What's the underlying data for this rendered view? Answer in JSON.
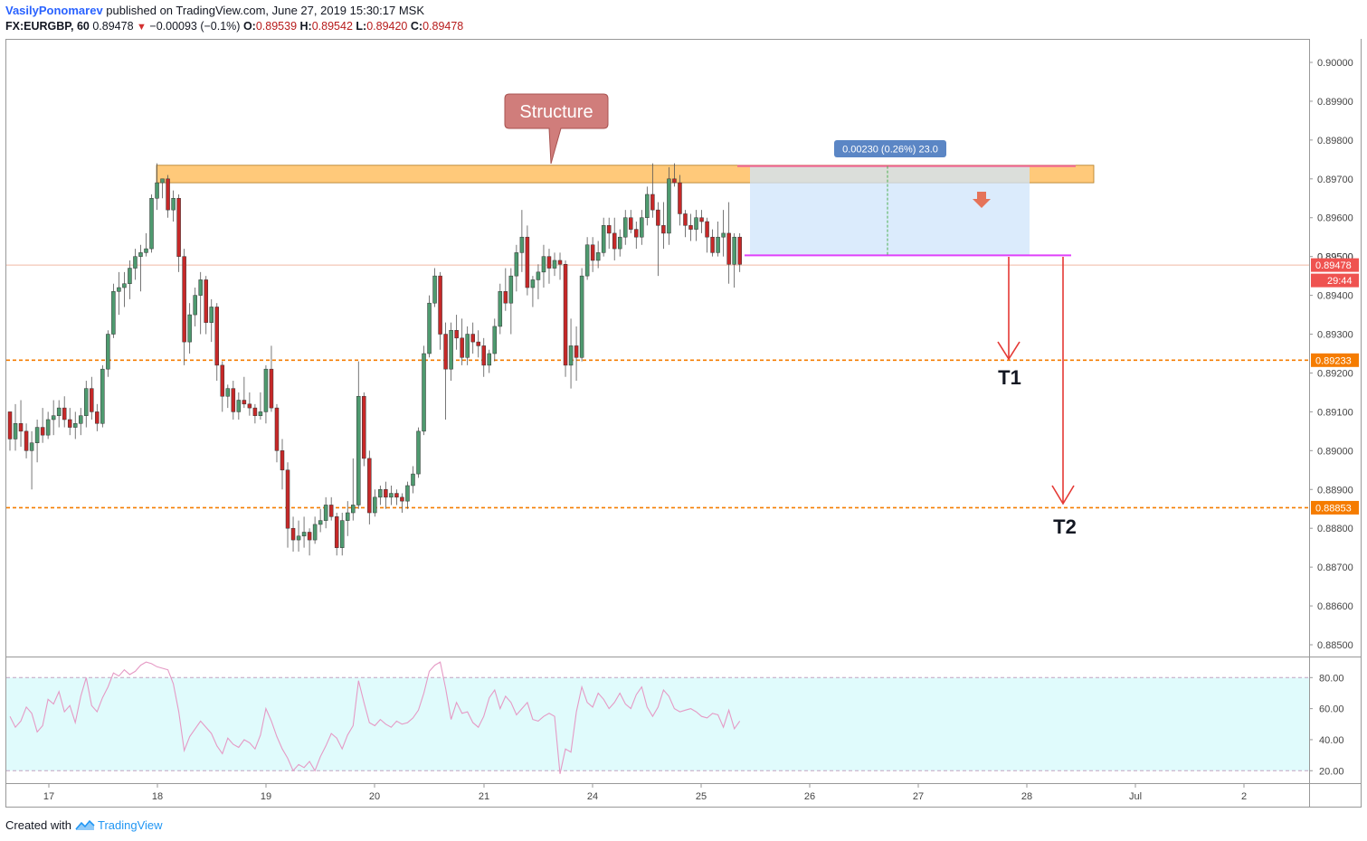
{
  "header": {
    "author": "VasilyPonomarev",
    "published": "published on TradingView.com, June 27, 2019 15:30:17 MSK",
    "symbol": "FX:EURGBP, 60",
    "last": "0.89478",
    "change": "−0.00093 (−0.1%)",
    "open_label": "O:",
    "open": "0.89539",
    "high_label": "H:",
    "high": "0.89542",
    "low_label": "L:",
    "low": "0.89420",
    "close_label": "C:",
    "close": "0.89478"
  },
  "footer": {
    "created": "Created with",
    "brand": "TradingView"
  },
  "colors": {
    "up": "#4e9a6f",
    "down": "#c62828",
    "zone": "#ffb74d",
    "hline": "#f57c00",
    "magenta": "#e040fb",
    "pinkline": "#f06292",
    "arrow": "#e53935",
    "box": "#cfe4fb",
    "callout": "#d07d7b",
    "rsi": "#e59ac5",
    "rsiBand": "#e0fbfc"
  },
  "chart_data": {
    "type": "candlestick",
    "symbol": "FX:EURGBP",
    "timeframe": "60",
    "ylim": [
      0.8845,
      0.9011
    ],
    "price_ticks": [
      "0.90000",
      "0.89900",
      "0.89800",
      "0.89700",
      "0.89600",
      "0.89500",
      "0.89400",
      "0.89300",
      "0.89200",
      "0.89100",
      "0.89000",
      "0.88900",
      "0.88800",
      "0.88700",
      "0.88600",
      "0.88500"
    ],
    "x_ticks": [
      "17",
      "18",
      "19",
      "20",
      "21",
      "24",
      "25",
      "26",
      "27",
      "28",
      "Jul",
      "2"
    ],
    "last_price_label": "0.89478",
    "countdown": "29:44",
    "levels": [
      {
        "price": 0.89233,
        "label": "0.89233",
        "color": "#f57c00"
      },
      {
        "price": 0.88853,
        "label": "0.88853",
        "color": "#f57c00"
      }
    ],
    "annotations": {
      "structure": "Structure",
      "measure": "0.00230 (0.26%) 23.0",
      "t1": "T1",
      "t2": "T2",
      "hidden_tick": "0.89500"
    },
    "zone": {
      "from": 0.8969,
      "to": 0.89735
    },
    "resistance_line": 0.89733,
    "support_line": 0.89503,
    "candles": [
      [
        0.891,
        0.891,
        0.89,
        0.8903
      ],
      [
        0.8903,
        0.8912,
        0.89,
        0.8907
      ],
      [
        0.8907,
        0.8913,
        0.8901,
        0.8905
      ],
      [
        0.8905,
        0.8907,
        0.8898,
        0.89
      ],
      [
        0.89,
        0.8905,
        0.889,
        0.8902
      ],
      [
        0.8902,
        0.8908,
        0.8897,
        0.8906
      ],
      [
        0.8906,
        0.8911,
        0.8902,
        0.8904
      ],
      [
        0.8904,
        0.891,
        0.8903,
        0.8908
      ],
      [
        0.8908,
        0.8913,
        0.8904,
        0.8909
      ],
      [
        0.8909,
        0.8913,
        0.8906,
        0.8911
      ],
      [
        0.8911,
        0.8914,
        0.8906,
        0.8908
      ],
      [
        0.8908,
        0.8911,
        0.8904,
        0.8906
      ],
      [
        0.8906,
        0.891,
        0.8903,
        0.8907
      ],
      [
        0.8907,
        0.8911,
        0.8904,
        0.8909
      ],
      [
        0.8909,
        0.8918,
        0.8906,
        0.8916
      ],
      [
        0.8916,
        0.8919,
        0.8908,
        0.891
      ],
      [
        0.891,
        0.8912,
        0.8905,
        0.8907
      ],
      [
        0.8907,
        0.8922,
        0.8906,
        0.8921
      ],
      [
        0.8921,
        0.8931,
        0.8919,
        0.893
      ],
      [
        0.893,
        0.8943,
        0.8929,
        0.8941
      ],
      [
        0.8941,
        0.8946,
        0.8935,
        0.8942
      ],
      [
        0.8942,
        0.8946,
        0.8937,
        0.8943
      ],
      [
        0.8943,
        0.8949,
        0.8939,
        0.8947
      ],
      [
        0.8947,
        0.8952,
        0.8944,
        0.895
      ],
      [
        0.895,
        0.8953,
        0.8941,
        0.8951
      ],
      [
        0.8951,
        0.8956,
        0.895,
        0.8952
      ],
      [
        0.8952,
        0.8966,
        0.8951,
        0.8965
      ],
      [
        0.8965,
        0.8974,
        0.8962,
        0.8969
      ],
      [
        0.8969,
        0.897,
        0.8965,
        0.897
      ],
      [
        0.897,
        0.8971,
        0.896,
        0.8962
      ],
      [
        0.8962,
        0.8967,
        0.8959,
        0.8965
      ],
      [
        0.8965,
        0.8966,
        0.8946,
        0.895
      ],
      [
        0.895,
        0.8952,
        0.8922,
        0.8928
      ],
      [
        0.8928,
        0.8938,
        0.8925,
        0.8935
      ],
      [
        0.8935,
        0.8942,
        0.8932,
        0.894
      ],
      [
        0.894,
        0.8946,
        0.893,
        0.8944
      ],
      [
        0.8944,
        0.8945,
        0.893,
        0.8933
      ],
      [
        0.8933,
        0.8939,
        0.8928,
        0.8937
      ],
      [
        0.8937,
        0.8938,
        0.8918,
        0.8922
      ],
      [
        0.8922,
        0.8923,
        0.891,
        0.8914
      ],
      [
        0.8914,
        0.8917,
        0.8911,
        0.8916
      ],
      [
        0.8916,
        0.8918,
        0.8908,
        0.891
      ],
      [
        0.891,
        0.8915,
        0.8908,
        0.8913
      ],
      [
        0.8913,
        0.8919,
        0.8911,
        0.8912
      ],
      [
        0.8912,
        0.8915,
        0.8909,
        0.8911
      ],
      [
        0.8911,
        0.8912,
        0.8907,
        0.8909
      ],
      [
        0.8909,
        0.8915,
        0.8908,
        0.891
      ],
      [
        0.891,
        0.8922,
        0.8907,
        0.8921
      ],
      [
        0.8921,
        0.8927,
        0.891,
        0.8911
      ],
      [
        0.8911,
        0.8912,
        0.8897,
        0.89
      ],
      [
        0.89,
        0.8903,
        0.889,
        0.8895
      ],
      [
        0.8895,
        0.8897,
        0.8875,
        0.888
      ],
      [
        0.888,
        0.8883,
        0.8874,
        0.8877
      ],
      [
        0.8877,
        0.8882,
        0.8874,
        0.8878
      ],
      [
        0.8878,
        0.8883,
        0.8875,
        0.8879
      ],
      [
        0.8879,
        0.888,
        0.8873,
        0.8877
      ],
      [
        0.8877,
        0.8883,
        0.8876,
        0.8881
      ],
      [
        0.8881,
        0.8885,
        0.8879,
        0.8882
      ],
      [
        0.8882,
        0.8888,
        0.888,
        0.8886
      ],
      [
        0.8886,
        0.8888,
        0.8882,
        0.8883
      ],
      [
        0.8883,
        0.8884,
        0.8873,
        0.8875
      ],
      [
        0.8875,
        0.8884,
        0.8873,
        0.8882
      ],
      [
        0.8882,
        0.8887,
        0.8878,
        0.8884
      ],
      [
        0.8884,
        0.8898,
        0.8882,
        0.8886
      ],
      [
        0.8886,
        0.8923,
        0.8885,
        0.8914
      ],
      [
        0.8914,
        0.8915,
        0.8896,
        0.8898
      ],
      [
        0.8898,
        0.89,
        0.8881,
        0.8884
      ],
      [
        0.8884,
        0.889,
        0.8883,
        0.8888
      ],
      [
        0.8888,
        0.8891,
        0.8886,
        0.889
      ],
      [
        0.889,
        0.8892,
        0.8885,
        0.8888
      ],
      [
        0.8888,
        0.8891,
        0.8886,
        0.8889
      ],
      [
        0.8889,
        0.889,
        0.8886,
        0.8888
      ],
      [
        0.8888,
        0.8889,
        0.8884,
        0.8887
      ],
      [
        0.8887,
        0.8892,
        0.8885,
        0.8891
      ],
      [
        0.8891,
        0.8896,
        0.8889,
        0.8894
      ],
      [
        0.8894,
        0.8906,
        0.8893,
        0.8905
      ],
      [
        0.8905,
        0.8927,
        0.8904,
        0.8925
      ],
      [
        0.8925,
        0.894,
        0.8924,
        0.8938
      ],
      [
        0.8938,
        0.8947,
        0.8937,
        0.8945
      ],
      [
        0.8945,
        0.8946,
        0.8926,
        0.893
      ],
      [
        0.893,
        0.8933,
        0.8908,
        0.8921
      ],
      [
        0.8921,
        0.8933,
        0.8918,
        0.8931
      ],
      [
        0.8931,
        0.8935,
        0.8926,
        0.8929
      ],
      [
        0.8929,
        0.8934,
        0.8922,
        0.8924
      ],
      [
        0.8924,
        0.8932,
        0.8922,
        0.893
      ],
      [
        0.893,
        0.8933,
        0.8925,
        0.8928
      ],
      [
        0.8928,
        0.8931,
        0.8924,
        0.8927
      ],
      [
        0.8927,
        0.8929,
        0.8919,
        0.8922
      ],
      [
        0.8922,
        0.8926,
        0.892,
        0.8925
      ],
      [
        0.8925,
        0.8934,
        0.8923,
        0.8932
      ],
      [
        0.8932,
        0.8943,
        0.893,
        0.8941
      ],
      [
        0.8941,
        0.8947,
        0.8936,
        0.8938
      ],
      [
        0.8938,
        0.8947,
        0.893,
        0.8945
      ],
      [
        0.8945,
        0.8953,
        0.8941,
        0.8951
      ],
      [
        0.8951,
        0.8962,
        0.8946,
        0.8955
      ],
      [
        0.8955,
        0.8958,
        0.894,
        0.8942
      ],
      [
        0.8942,
        0.8945,
        0.8937,
        0.8944
      ],
      [
        0.8944,
        0.8948,
        0.8939,
        0.8946
      ],
      [
        0.8946,
        0.8953,
        0.8942,
        0.895
      ],
      [
        0.895,
        0.8952,
        0.8943,
        0.8947
      ],
      [
        0.8947,
        0.8951,
        0.8945,
        0.8949
      ],
      [
        0.8949,
        0.8951,
        0.8944,
        0.8948
      ],
      [
        0.8948,
        0.8949,
        0.8919,
        0.8922
      ],
      [
        0.8922,
        0.8934,
        0.8916,
        0.8927
      ],
      [
        0.8927,
        0.8932,
        0.8918,
        0.8924
      ],
      [
        0.8924,
        0.8947,
        0.8923,
        0.8945
      ],
      [
        0.8945,
        0.8955,
        0.8944,
        0.8953
      ],
      [
        0.8953,
        0.8955,
        0.8946,
        0.8949
      ],
      [
        0.8949,
        0.8954,
        0.8947,
        0.8951
      ],
      [
        0.8951,
        0.896,
        0.895,
        0.8958
      ],
      [
        0.8958,
        0.896,
        0.8952,
        0.8956
      ],
      [
        0.8956,
        0.896,
        0.8949,
        0.8952
      ],
      [
        0.8952,
        0.8957,
        0.895,
        0.8955
      ],
      [
        0.8955,
        0.8962,
        0.8953,
        0.896
      ],
      [
        0.896,
        0.8962,
        0.8956,
        0.8957
      ],
      [
        0.8957,
        0.8959,
        0.8952,
        0.8955
      ],
      [
        0.8955,
        0.8962,
        0.8953,
        0.896
      ],
      [
        0.896,
        0.8968,
        0.8958,
        0.8966
      ],
      [
        0.8966,
        0.8974,
        0.896,
        0.8962
      ],
      [
        0.8962,
        0.8964,
        0.8945,
        0.8958
      ],
      [
        0.8958,
        0.8964,
        0.8952,
        0.8956
      ],
      [
        0.8956,
        0.8973,
        0.8953,
        0.897
      ],
      [
        0.897,
        0.8974,
        0.8968,
        0.8969
      ],
      [
        0.8969,
        0.8971,
        0.8958,
        0.8961
      ],
      [
        0.8961,
        0.8962,
        0.8955,
        0.8958
      ],
      [
        0.8958,
        0.8961,
        0.8954,
        0.8957
      ],
      [
        0.8957,
        0.8962,
        0.8954,
        0.896
      ],
      [
        0.896,
        0.8962,
        0.8956,
        0.8959
      ],
      [
        0.8959,
        0.896,
        0.8951,
        0.8955
      ],
      [
        0.8955,
        0.8957,
        0.895,
        0.8951
      ],
      [
        0.8951,
        0.8959,
        0.895,
        0.8955
      ],
      [
        0.8955,
        0.8962,
        0.895,
        0.8956
      ],
      [
        0.8956,
        0.8964,
        0.8943,
        0.8948
      ],
      [
        0.8948,
        0.8956,
        0.8942,
        0.8955
      ],
      [
        0.8955,
        0.8956,
        0.8946,
        0.8948
      ]
    ],
    "rsi": {
      "name": "RSI",
      "ylim": [
        12,
        93
      ],
      "levels": [
        80,
        20
      ],
      "ticks": [
        "80.00",
        "60.00",
        "40.00",
        "20.00"
      ],
      "values": [
        55,
        48,
        52,
        61,
        57,
        45,
        49,
        66,
        63,
        71,
        58,
        62,
        51,
        68,
        80,
        62,
        58,
        67,
        74,
        83,
        81,
        85,
        82,
        84,
        88,
        90,
        89,
        87,
        86,
        85,
        76,
        58,
        33,
        42,
        47,
        52,
        48,
        44,
        36,
        31,
        41,
        37,
        35,
        40,
        38,
        34,
        43,
        60,
        52,
        42,
        34,
        28,
        20,
        24,
        22,
        26,
        20,
        29,
        36,
        44,
        41,
        34,
        43,
        49,
        78,
        64,
        51,
        49,
        53,
        50,
        48,
        52,
        50,
        51,
        54,
        59,
        70,
        84,
        88,
        90,
        73,
        53,
        64,
        57,
        58,
        51,
        48,
        55,
        67,
        72,
        60,
        68,
        64,
        56,
        60,
        64,
        53,
        52,
        55,
        57,
        55,
        18,
        34,
        32,
        58,
        74,
        64,
        61,
        70,
        66,
        60,
        64,
        70,
        63,
        60,
        69,
        74,
        61,
        55,
        61,
        72,
        68,
        60,
        58,
        59,
        60,
        58,
        55,
        54,
        57,
        56,
        48,
        59,
        47,
        52
      ],
      "series": []
    }
  }
}
